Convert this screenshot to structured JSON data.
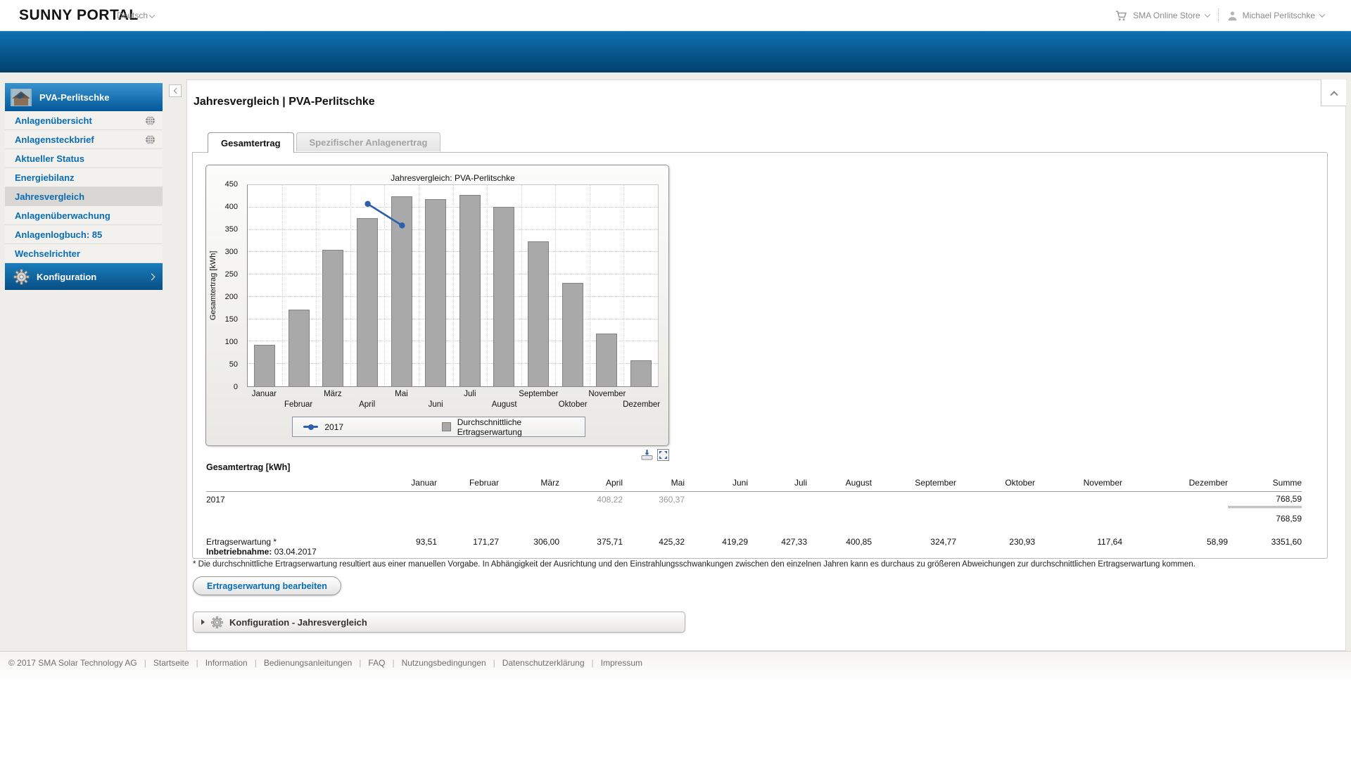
{
  "header": {
    "logo": "SUNNY PORTAL",
    "language": {
      "label": "Deutsch"
    },
    "store": {
      "label": "SMA Online Store"
    },
    "user": {
      "name": "Michael Perlitschke"
    }
  },
  "sidebar": {
    "plant_name": "PVA-Perlitschke",
    "items": [
      {
        "label": "Anlagenübersicht",
        "icon": "globe",
        "selected": false
      },
      {
        "label": "Anlagensteckbrief",
        "icon": "globe",
        "selected": false
      },
      {
        "label": "Aktueller Status",
        "icon": "",
        "selected": false
      },
      {
        "label": "Energiebilanz",
        "icon": "",
        "selected": false
      },
      {
        "label": "Jahresvergleich",
        "icon": "",
        "selected": true
      },
      {
        "label": "Anlagenüberwachung",
        "icon": "",
        "selected": false
      },
      {
        "label": "Anlagenlogbuch: 85",
        "icon": "",
        "selected": false
      },
      {
        "label": "Wechselrichter",
        "icon": "",
        "selected": false
      }
    ],
    "config": {
      "label": "Konfiguration"
    }
  },
  "main": {
    "title": "Jahresvergleich | PVA-Perlitschke",
    "tabs": [
      {
        "label": "Gesamtertrag",
        "active": true
      },
      {
        "label": "Spezifischer Anlagenertrag",
        "active": false
      }
    ]
  },
  "chart_data": {
    "type": "combo",
    "title": "Jahresvergleich: PVA-Perlitschke",
    "ylabel": "Gesamtertrag [kWh]",
    "ylim": [
      0,
      450
    ],
    "ytick_step": 50,
    "grid": true,
    "legend_position": "bottom",
    "categories": [
      "Januar",
      "Februar",
      "März",
      "April",
      "Mai",
      "Juni",
      "Juli",
      "August",
      "September",
      "Oktober",
      "November",
      "Dezember"
    ],
    "series": [
      {
        "name": "2017",
        "type": "line",
        "color": "#2e5fae",
        "values": [
          null,
          null,
          null,
          408.22,
          360.37,
          null,
          null,
          null,
          null,
          null,
          null,
          null
        ]
      },
      {
        "name": "Durchschnittliche Ertragserwartung",
        "type": "bar",
        "color": "#a9a9a9",
        "values": [
          93.51,
          171.27,
          306.0,
          375.71,
          425.32,
          419.29,
          427.33,
          400.85,
          324.77,
          230.93,
          117.64,
          58.99
        ]
      }
    ]
  },
  "table": {
    "title": "Gesamtertrag [kWh]",
    "columns": [
      "Januar",
      "Februar",
      "März",
      "April",
      "Mai",
      "Juni",
      "Juli",
      "August",
      "September",
      "Oktober",
      "November",
      "Dezember",
      "Summe"
    ],
    "rows": [
      {
        "label": "2017",
        "muted": true,
        "rule_under_sum": true,
        "kind": "year",
        "values": [
          "",
          "",
          "",
          "408,22",
          "360,37",
          "",
          "",
          "",
          "",
          "",
          "",
          "",
          "768,59"
        ]
      },
      {
        "label": "",
        "muted": false,
        "rule_under_sum": false,
        "kind": "total",
        "values": [
          "",
          "",
          "",
          "",
          "",
          "",
          "",
          "",
          "",
          "",
          "",
          "",
          "768,59"
        ]
      },
      {
        "label": "Ertragserwartung *",
        "sublabel_bold": "Inbetriebnahme:",
        "sublabel_rest": " 03.04.2017",
        "muted": false,
        "rule_under_sum": false,
        "kind": "expect",
        "values": [
          "93,51",
          "171,27",
          "306,00",
          "375,71",
          "425,32",
          "419,29",
          "427,33",
          "400,85",
          "324,77",
          "230,93",
          "117,64",
          "58,99",
          "3351,60"
        ]
      }
    ]
  },
  "footnote": "* Die durchschnittliche Ertragserwartung resultiert aus einer manuellen Vorgabe. In Abhängigkeit der Ausrichtung und den Einstrahlungsschwankungen zwischen den einzelnen Jahren kann es durchaus zu größeren Abweichungen zur durchschnittlichen Ertragserwartung kommen.",
  "actions": {
    "edit_button": "Ertragserwartung bearbeiten"
  },
  "config_panel": {
    "label": "Konfiguration - Jahresvergleich"
  },
  "footer": {
    "copyright": "© 2017 SMA Solar Technology AG",
    "links": [
      "Startseite",
      "Information",
      "Bedienungsanleitungen",
      "FAQ",
      "Nutzungsbedingungen",
      "Datenschutzerklärung",
      "Impressum"
    ]
  }
}
